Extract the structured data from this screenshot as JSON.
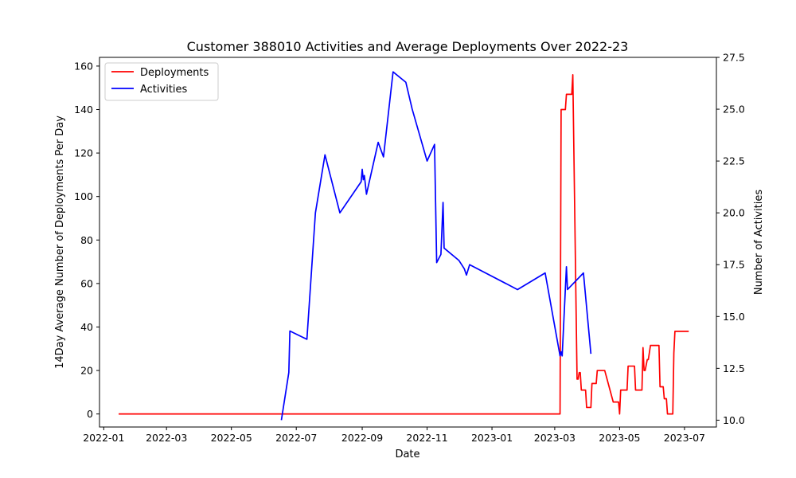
{
  "chart_data": {
    "type": "line",
    "title": "Customer 388010 Activities and Average Deployments Over 2022-23",
    "xlabel": "Date",
    "ylabel_left": "14Day Average Number of Deployments Per Day",
    "ylabel_right": "Number of Activities",
    "xlim": [
      "2021-12-28",
      "2023-07-31"
    ],
    "ylim_left": [
      -6,
      164
    ],
    "ylim_right": [
      9.67,
      27.5
    ],
    "x_ticks": [
      "2022-01-01",
      "2022-03-01",
      "2022-05-01",
      "2022-07-01",
      "2022-09-01",
      "2022-11-01",
      "2023-01-01",
      "2023-03-01",
      "2023-05-01",
      "2023-07-01"
    ],
    "x_tick_labels": [
      "2022-01",
      "2022-03",
      "2022-05",
      "2022-07",
      "2022-09",
      "2022-11",
      "2023-01",
      "2023-03",
      "2023-05",
      "2023-07"
    ],
    "y_ticks_left": [
      0,
      20,
      40,
      60,
      80,
      100,
      120,
      140,
      160
    ],
    "y_ticks_right": [
      10.0,
      12.5,
      15.0,
      17.5,
      20.0,
      22.5,
      25.0,
      27.5
    ],
    "y_tick_labels_right": [
      "10.0",
      "12.5",
      "15.0",
      "17.5",
      "20.0",
      "22.5",
      "25.0",
      "27.5"
    ],
    "grid": false,
    "legend": {
      "placement": "top-left",
      "entries": [
        "Deployments",
        "Activities"
      ]
    },
    "series": [
      {
        "name": "Deployments",
        "axis": "left",
        "color": "#ff0000",
        "x": [
          "2022-01-15",
          "2023-03-06",
          "2023-03-07",
          "2023-03-11",
          "2023-03-12",
          "2023-03-17",
          "2023-03-18",
          "2023-03-22",
          "2023-03-23",
          "2023-03-24",
          "2023-03-25",
          "2023-03-26",
          "2023-03-27",
          "2023-03-28",
          "2023-03-30",
          "2023-03-31",
          "2023-04-01",
          "2023-04-04",
          "2023-04-05",
          "2023-04-06",
          "2023-04-09",
          "2023-04-10",
          "2023-04-14",
          "2023-04-15",
          "2023-04-17",
          "2023-04-25",
          "2023-04-26",
          "2023-04-30",
          "2023-05-01",
          "2023-05-02",
          "2023-05-08",
          "2023-05-09",
          "2023-05-15",
          "2023-05-16",
          "2023-05-22",
          "2023-05-23",
          "2023-05-24",
          "2023-05-25",
          "2023-05-27",
          "2023-05-28",
          "2023-05-30",
          "2023-06-07",
          "2023-06-08",
          "2023-06-11",
          "2023-06-12",
          "2023-06-14",
          "2023-06-15",
          "2023-06-20",
          "2023-06-21",
          "2023-06-22",
          "2023-07-05"
        ],
        "values": [
          0,
          0,
          140,
          140,
          147,
          147,
          156,
          16,
          16,
          19,
          19,
          11,
          11,
          11,
          11,
          3,
          3,
          3,
          14,
          14,
          14,
          20,
          20,
          20,
          20,
          5.5,
          5.5,
          5.5,
          0,
          11,
          11,
          22,
          22,
          11,
          11,
          30.5,
          20,
          20,
          25,
          25,
          31.5,
          31.5,
          12.5,
          12.5,
          7,
          7,
          0,
          0,
          28,
          38,
          38
        ]
      },
      {
        "name": "Activities",
        "axis": "right",
        "color": "#0000ff",
        "x": [
          "2022-06-17",
          "2022-06-24",
          "2022-06-25",
          "2022-07-11",
          "2022-07-19",
          "2022-07-28",
          "2022-08-11",
          "2022-08-31",
          "2022-09-01",
          "2022-09-02",
          "2022-09-03",
          "2022-09-05",
          "2022-09-16",
          "2022-09-21",
          "2022-09-30",
          "2022-10-12",
          "2022-10-18",
          "2022-11-01",
          "2022-11-08",
          "2022-11-10",
          "2022-11-14",
          "2022-11-16",
          "2022-11-17",
          "2022-12-01",
          "2022-12-06",
          "2022-12-08",
          "2022-12-11",
          "2023-01-25",
          "2023-02-20",
          "2023-03-06",
          "2023-03-07",
          "2023-03-08",
          "2023-03-12",
          "2023-03-13",
          "2023-03-28",
          "2023-04-04"
        ],
        "values": [
          10.0,
          12.3,
          14.3,
          13.9,
          20.0,
          22.8,
          20.0,
          21.5,
          22.1,
          21.6,
          21.8,
          20.9,
          23.4,
          22.7,
          26.8,
          26.3,
          25.0,
          22.5,
          23.3,
          17.6,
          18.0,
          20.5,
          18.3,
          17.7,
          17.3,
          17.0,
          17.5,
          16.3,
          17.1,
          13.1,
          13.3,
          13.1,
          17.4,
          16.3,
          17.1,
          13.2
        ]
      }
    ]
  }
}
